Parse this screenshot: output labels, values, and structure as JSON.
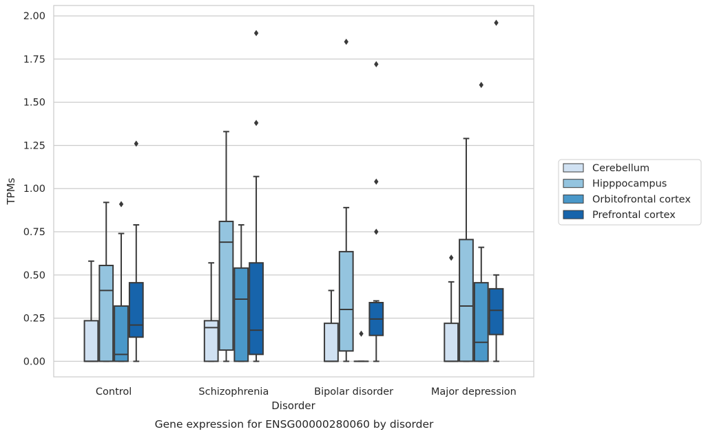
{
  "chart_data": {
    "type": "boxplot",
    "title": "",
    "caption": "Gene expression for ENSG00000280060 by disorder",
    "xlabel": "Disorder",
    "ylabel": "TPMs",
    "ylim": [
      -0.09,
      2.06
    ],
    "yticks": [
      "0.00",
      "0.25",
      "0.50",
      "0.75",
      "1.00",
      "1.25",
      "1.50",
      "1.75",
      "2.00"
    ],
    "ytick_values": [
      0,
      0.25,
      0.5,
      0.75,
      1.0,
      1.25,
      1.5,
      1.75,
      2.0
    ],
    "categories": [
      "Control",
      "Schizophrenia",
      "Bipolar disorder",
      "Major depression"
    ],
    "grid": "horizontal",
    "legend_position": "right",
    "series": [
      {
        "name": "Cerebellum",
        "color": "#d0e1f2",
        "boxes": [
          {
            "whislo": 0.0,
            "q1": 0.0,
            "med": 0.0,
            "q3": 0.235,
            "whishi": 0.58,
            "fliers": []
          },
          {
            "whislo": 0.0,
            "q1": 0.0,
            "med": 0.195,
            "q3": 0.235,
            "whishi": 0.57,
            "fliers": []
          },
          {
            "whislo": 0.0,
            "q1": 0.0,
            "med": 0.0,
            "q3": 0.22,
            "whishi": 0.41,
            "fliers": []
          },
          {
            "whislo": 0.0,
            "q1": 0.0,
            "med": 0.0,
            "q3": 0.22,
            "whishi": 0.46,
            "fliers": [
              0.6
            ]
          }
        ]
      },
      {
        "name": "Hipppocampus",
        "color": "#94c4df",
        "boxes": [
          {
            "whislo": 0.0,
            "q1": 0.0,
            "med": 0.41,
            "q3": 0.555,
            "whishi": 0.92,
            "fliers": []
          },
          {
            "whislo": 0.0,
            "q1": 0.065,
            "med": 0.69,
            "q3": 0.81,
            "whishi": 1.33,
            "fliers": []
          },
          {
            "whislo": 0.0,
            "q1": 0.06,
            "med": 0.3,
            "q3": 0.635,
            "whishi": 0.89,
            "fliers": [
              1.85
            ]
          },
          {
            "whislo": 0.0,
            "q1": 0.0,
            "med": 0.32,
            "q3": 0.705,
            "whishi": 1.29,
            "fliers": []
          }
        ]
      },
      {
        "name": "Orbitofrontal cortex",
        "color": "#4a98c9",
        "boxes": [
          {
            "whislo": 0.0,
            "q1": 0.0,
            "med": 0.04,
            "q3": 0.32,
            "whishi": 0.74,
            "fliers": [
              0.91
            ]
          },
          {
            "whislo": 0.0,
            "q1": 0.0,
            "med": 0.36,
            "q3": 0.54,
            "whishi": 0.79,
            "fliers": []
          },
          {
            "whislo": 0.0,
            "q1": 0.0,
            "med": 0.0,
            "q3": 0.0,
            "whishi": 0.0,
            "fliers": [
              0.16
            ]
          },
          {
            "whislo": 0.0,
            "q1": 0.0,
            "med": 0.11,
            "q3": 0.455,
            "whishi": 0.66,
            "fliers": [
              1.6
            ]
          }
        ]
      },
      {
        "name": "Prefrontal cortex",
        "color": "#1764ab",
        "boxes": [
          {
            "whislo": 0.0,
            "q1": 0.14,
            "med": 0.21,
            "q3": 0.455,
            "whishi": 0.79,
            "fliers": [
              1.26
            ]
          },
          {
            "whislo": 0.0,
            "q1": 0.04,
            "med": 0.18,
            "q3": 0.57,
            "whishi": 1.07,
            "fliers": [
              1.38,
              1.9
            ]
          },
          {
            "whislo": 0.0,
            "q1": 0.15,
            "med": 0.245,
            "q3": 0.34,
            "whishi": 0.35,
            "fliers": [
              0.75,
              1.04,
              1.72
            ]
          },
          {
            "whislo": 0.0,
            "q1": 0.155,
            "med": 0.295,
            "q3": 0.42,
            "whishi": 0.5,
            "fliers": [
              1.96
            ]
          }
        ]
      }
    ]
  }
}
